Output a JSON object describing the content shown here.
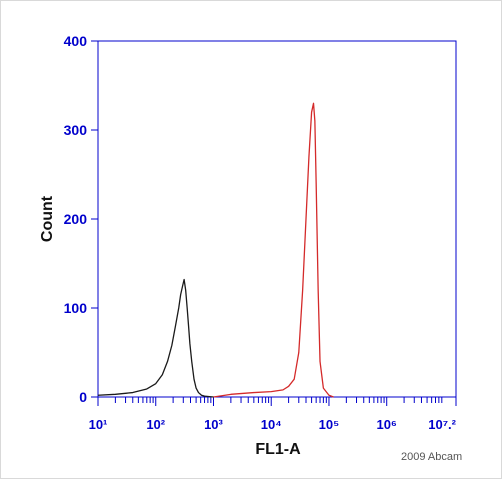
{
  "chart_data": {
    "type": "line",
    "title": "",
    "xlabel": "FL1-A",
    "ylabel": "Count",
    "xscale": "log",
    "xlim": [
      10,
      15848931.92
    ],
    "ylim": [
      0,
      400
    ],
    "yticks": [
      0,
      100,
      200,
      300,
      400
    ],
    "xtick_labels": [
      "10¹",
      "10²",
      "10³",
      "10⁴",
      "10⁵",
      "10⁶",
      "10⁷.²"
    ],
    "grid": false,
    "series": [
      {
        "color": "#1a1a1a",
        "points": [
          [
            10,
            2
          ],
          [
            20,
            3
          ],
          [
            40,
            5
          ],
          [
            70,
            9
          ],
          [
            100,
            15
          ],
          [
            130,
            25
          ],
          [
            160,
            40
          ],
          [
            190,
            58
          ],
          [
            220,
            80
          ],
          [
            250,
            100
          ],
          [
            270,
            115
          ],
          [
            290,
            124
          ],
          [
            310,
            132
          ],
          [
            330,
            120
          ],
          [
            350,
            100
          ],
          [
            370,
            80
          ],
          [
            390,
            60
          ],
          [
            420,
            40
          ],
          [
            460,
            20
          ],
          [
            500,
            10
          ],
          [
            550,
            5
          ],
          [
            620,
            2
          ],
          [
            700,
            1
          ],
          [
            1000,
            0
          ]
        ]
      },
      {
        "color": "#d42a2a",
        "points": [
          [
            1000,
            0
          ],
          [
            2000,
            3
          ],
          [
            5000,
            5
          ],
          [
            10000,
            6
          ],
          [
            16000,
            8
          ],
          [
            20000,
            12
          ],
          [
            25000,
            20
          ],
          [
            30000,
            50
          ],
          [
            35000,
            120
          ],
          [
            40000,
            200
          ],
          [
            45000,
            270
          ],
          [
            50000,
            320
          ],
          [
            54000,
            330
          ],
          [
            57000,
            310
          ],
          [
            60000,
            240
          ],
          [
            65000,
            120
          ],
          [
            70000,
            40
          ],
          [
            80000,
            10
          ],
          [
            100000,
            2
          ],
          [
            120000,
            0
          ]
        ]
      }
    ]
  },
  "footer": {
    "copyright": "2009 Abcam"
  }
}
